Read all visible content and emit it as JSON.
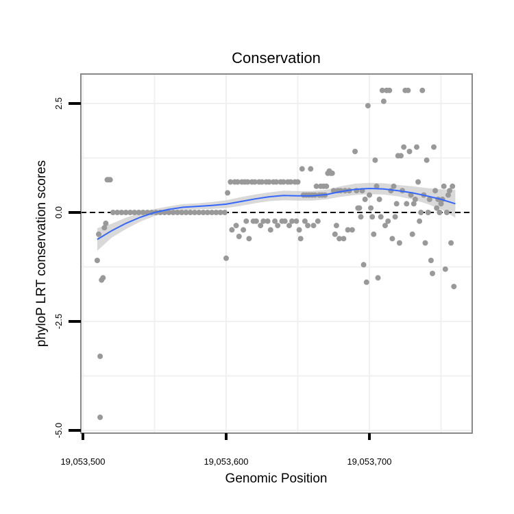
{
  "chart_data": {
    "type": "scatter",
    "title": "Conservation",
    "xlabel": "Genomic Position",
    "ylabel": "phyloP LRT conservation scores",
    "xlim": [
      19053500,
      19053775
    ],
    "ylim": [
      -5,
      3.2
    ],
    "x_ticks": [
      19053500,
      19053600,
      19053700
    ],
    "x_tick_labels": [
      "19,053,500",
      "19,053,600",
      "19,053,700"
    ],
    "y_ticks": [
      -5,
      -2.5,
      0,
      2.5
    ],
    "y_tick_labels": [
      "-5.0",
      "-2.5",
      "0.0",
      "2.5"
    ],
    "reference_line": {
      "y": 0,
      "style": "dashed",
      "color": "#000000"
    },
    "grid": true,
    "colors": {
      "points": "#999999",
      "smooth_line": "#3366ff",
      "confidence_band": "#cccccc",
      "panel_border": "#888888",
      "grid": "#f0f0f0"
    },
    "series": [
      {
        "name": "phyloP scores",
        "kind": "points",
        "points": [
          [
            19053510,
            -1.1
          ],
          [
            19053511,
            -0.5
          ],
          [
            19053512,
            -3.3
          ],
          [
            19053512,
            -4.7
          ],
          [
            19053513,
            -1.55
          ],
          [
            19053514,
            -1.5
          ],
          [
            19053515,
            -0.35
          ],
          [
            19053516,
            -0.25
          ],
          [
            19053517,
            0.75
          ],
          [
            19053518,
            0.75
          ],
          [
            19053519,
            0.75
          ],
          [
            19053521,
            0.0
          ],
          [
            19053524,
            0.0
          ],
          [
            19053527,
            0.0
          ],
          [
            19053530,
            0.0
          ],
          [
            19053533,
            0.0
          ],
          [
            19053536,
            0.0
          ],
          [
            19053539,
            0.0
          ],
          [
            19053542,
            0.0
          ],
          [
            19053545,
            0.0
          ],
          [
            19053548,
            0.0
          ],
          [
            19053551,
            0.0
          ],
          [
            19053554,
            0.0
          ],
          [
            19053557,
            0.0
          ],
          [
            19053560,
            0.0
          ],
          [
            19053563,
            0.0
          ],
          [
            19053566,
            0.0
          ],
          [
            19053569,
            0.0
          ],
          [
            19053572,
            0.0
          ],
          [
            19053575,
            0.0
          ],
          [
            19053578,
            0.0
          ],
          [
            19053581,
            0.0
          ],
          [
            19053584,
            0.0
          ],
          [
            19053587,
            0.0
          ],
          [
            19053590,
            0.0
          ],
          [
            19053593,
            0.0
          ],
          [
            19053596,
            0.0
          ],
          [
            19053599,
            0.0
          ],
          [
            19053600,
            -1.05
          ],
          [
            19053601,
            0.45
          ],
          [
            19053603,
            0.7
          ],
          [
            19053604,
            -0.4
          ],
          [
            19053606,
            0.7
          ],
          [
            19053607,
            -0.3
          ],
          [
            19053608,
            0.7
          ],
          [
            19053609,
            -0.55
          ],
          [
            19053611,
            0.7
          ],
          [
            19053612,
            -0.4
          ],
          [
            19053613,
            0.7
          ],
          [
            19053614,
            -0.2
          ],
          [
            19053615,
            0.7
          ],
          [
            19053616,
            -0.6
          ],
          [
            19053618,
            0.7
          ],
          [
            19053619,
            -0.2
          ],
          [
            19053620,
            0.7
          ],
          [
            19053621,
            -0.2
          ],
          [
            19053623,
            0.7
          ],
          [
            19053624,
            -0.3
          ],
          [
            19053625,
            0.7
          ],
          [
            19053626,
            -0.2
          ],
          [
            19053628,
            0.7
          ],
          [
            19053629,
            -0.2
          ],
          [
            19053630,
            0.7
          ],
          [
            19053631,
            -0.4
          ],
          [
            19053633,
            0.7
          ],
          [
            19053634,
            -0.2
          ],
          [
            19053635,
            0.7
          ],
          [
            19053636,
            -0.3
          ],
          [
            19053638,
            0.7
          ],
          [
            19053639,
            -0.2
          ],
          [
            19053640,
            0.7
          ],
          [
            19053641,
            -0.2
          ],
          [
            19053643,
            0.7
          ],
          [
            19053644,
            -0.3
          ],
          [
            19053645,
            0.7
          ],
          [
            19053646,
            -0.2
          ],
          [
            19053648,
            0.7
          ],
          [
            19053649,
            -0.2
          ],
          [
            19053650,
            0.7
          ],
          [
            19053651,
            -0.4
          ],
          [
            19053652,
            -0.6
          ],
          [
            19053653,
            1.0
          ],
          [
            19053654,
            0.4
          ],
          [
            19053655,
            -0.2
          ],
          [
            19053656,
            0.4
          ],
          [
            19053657,
            -0.3
          ],
          [
            19053658,
            0.4
          ],
          [
            19053659,
            1.0
          ],
          [
            19053660,
            0.4
          ],
          [
            19053661,
            -0.3
          ],
          [
            19053662,
            0.4
          ],
          [
            19053663,
            0.6
          ],
          [
            19053664,
            -0.2
          ],
          [
            19053665,
            0.4
          ],
          [
            19053666,
            0.6
          ],
          [
            19053667,
            0.4
          ],
          [
            19053668,
            0.6
          ],
          [
            19053669,
            0.4
          ],
          [
            19053670,
            0.6
          ],
          [
            19053671,
            0.9
          ],
          [
            19053672,
            0.95
          ],
          [
            19053673,
            0.9
          ],
          [
            19053674,
            0.9
          ],
          [
            19053675,
            0.5
          ],
          [
            19053676,
            -0.5
          ],
          [
            19053677,
            -0.3
          ],
          [
            19053678,
            0.5
          ],
          [
            19053679,
            -0.6
          ],
          [
            19053680,
            0.5
          ],
          [
            19053682,
            -0.6
          ],
          [
            19053683,
            0.5
          ],
          [
            19053685,
            -0.4
          ],
          [
            19053686,
            0.5
          ],
          [
            19053688,
            -0.4
          ],
          [
            19053690,
            1.4
          ],
          [
            19053691,
            0.5
          ],
          [
            19053692,
            0.1
          ],
          [
            19053693,
            0.1
          ],
          [
            19053694,
            -0.1
          ],
          [
            19053695,
            0.5
          ],
          [
            19053696,
            -1.2
          ],
          [
            19053697,
            0.3
          ],
          [
            19053698,
            -1.6
          ],
          [
            19053699,
            2.45
          ],
          [
            19053700,
            0.4
          ],
          [
            19053701,
            0.1
          ],
          [
            19053702,
            -0.1
          ],
          [
            19053703,
            -0.5
          ],
          [
            19053704,
            1.2
          ],
          [
            19053705,
            0.6
          ],
          [
            19053706,
            -1.5
          ],
          [
            19053707,
            0.3
          ],
          [
            19053708,
            -0.1
          ],
          [
            19053709,
            2.8
          ],
          [
            19053710,
            2.55
          ],
          [
            19053711,
            -0.3
          ],
          [
            19053712,
            2.8
          ],
          [
            19053713,
            -0.2
          ],
          [
            19053714,
            2.8
          ],
          [
            19053715,
            0.5
          ],
          [
            19053716,
            -0.6
          ],
          [
            19053717,
            0.6
          ],
          [
            19053718,
            -0.1
          ],
          [
            19053719,
            0.2
          ],
          [
            19053720,
            1.3
          ],
          [
            19053721,
            -0.7
          ],
          [
            19053722,
            1.3
          ],
          [
            19053723,
            0.5
          ],
          [
            19053724,
            1.5
          ],
          [
            19053725,
            2.8
          ],
          [
            19053726,
            0.2
          ],
          [
            19053727,
            2.8
          ],
          [
            19053728,
            1.4
          ],
          [
            19053729,
            0.4
          ],
          [
            19053730,
            -0.5
          ],
          [
            19053731,
            0.2
          ],
          [
            19053732,
            0.3
          ],
          [
            19053733,
            1.5
          ],
          [
            19053734,
            0.7
          ],
          [
            19053735,
            -0.2
          ],
          [
            19053736,
            0.0
          ],
          [
            19053737,
            2.8
          ],
          [
            19053738,
            0.4
          ],
          [
            19053739,
            -0.7
          ],
          [
            19053740,
            1.2
          ],
          [
            19053741,
            0.0
          ],
          [
            19053742,
            0.3
          ],
          [
            19053743,
            -1.1
          ],
          [
            19053744,
            -1.4
          ],
          [
            19053745,
            1.5
          ],
          [
            19053746,
            0.5
          ],
          [
            19053747,
            0.1
          ],
          [
            19053748,
            0.3
          ],
          [
            19053749,
            0.0
          ],
          [
            19053750,
            0.2
          ],
          [
            19053751,
            0.3
          ],
          [
            19053752,
            0.6
          ],
          [
            19053753,
            -1.3
          ],
          [
            19053754,
            0.0
          ],
          [
            19053755,
            0.4
          ],
          [
            19053756,
            0.5
          ],
          [
            19053757,
            -0.7
          ],
          [
            19053758,
            0.6
          ],
          [
            19053759,
            -1.7
          ]
        ]
      },
      {
        "name": "loess fit",
        "kind": "smooth",
        "x": [
          19053510,
          19053520,
          19053530,
          19053540,
          19053550,
          19053560,
          19053570,
          19053580,
          19053590,
          19053600,
          19053610,
          19053620,
          19053630,
          19053640,
          19053650,
          19053660,
          19053670,
          19053680,
          19053690,
          19053700,
          19053710,
          19053720,
          19053730,
          19053740,
          19053750,
          19053760
        ],
        "y": [
          -0.62,
          -0.42,
          -0.25,
          -0.11,
          0.0,
          0.07,
          0.12,
          0.14,
          0.16,
          0.19,
          0.25,
          0.31,
          0.36,
          0.39,
          0.38,
          0.38,
          0.41,
          0.48,
          0.53,
          0.55,
          0.54,
          0.5,
          0.45,
          0.38,
          0.3,
          0.2
        ],
        "ci_lower": [
          -0.88,
          -0.58,
          -0.38,
          -0.21,
          -0.08,
          0.0,
          0.05,
          0.07,
          0.08,
          0.1,
          0.15,
          0.21,
          0.26,
          0.28,
          0.27,
          0.27,
          0.3,
          0.36,
          0.4,
          0.42,
          0.41,
          0.37,
          0.3,
          0.2,
          0.07,
          -0.12
        ],
        "ci_upper": [
          -0.36,
          -0.26,
          -0.12,
          -0.01,
          0.08,
          0.14,
          0.19,
          0.21,
          0.24,
          0.28,
          0.35,
          0.41,
          0.46,
          0.5,
          0.49,
          0.49,
          0.52,
          0.6,
          0.66,
          0.68,
          0.67,
          0.63,
          0.6,
          0.56,
          0.53,
          0.52
        ]
      }
    ]
  }
}
